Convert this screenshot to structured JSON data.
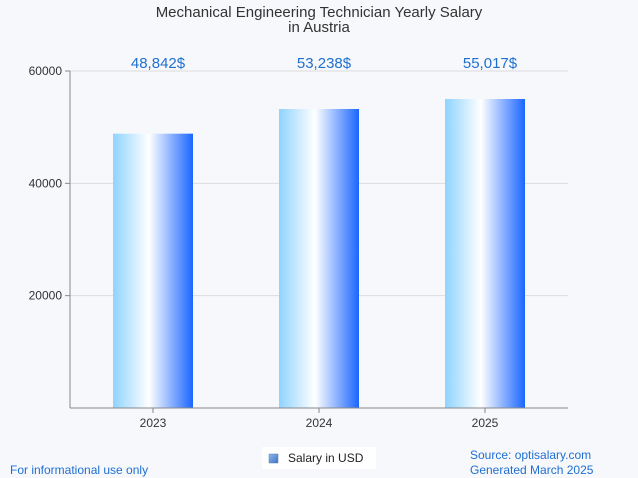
{
  "chart_data": {
    "type": "bar",
    "title": "Mechanical Engineering Technician Yearly Salary",
    "subtitle": "in Austria",
    "categories": [
      "2023",
      "2024",
      "2025"
    ],
    "values": [
      48842,
      53238,
      55017
    ],
    "value_labels": [
      "48,842$",
      "53,238$",
      "55,017$"
    ],
    "y_ticks": [
      "20000",
      "40000",
      "60000"
    ],
    "ylim": [
      0,
      60000
    ],
    "grid": true,
    "series": [
      {
        "name": "Salary in USD",
        "values": [
          48842,
          53238,
          55017
        ]
      }
    ],
    "legend_position": "bottom-center",
    "xlabel": "",
    "ylabel": ""
  },
  "footer": {
    "left": "For informational use only",
    "source": "Source: optisalary.com",
    "generated": "Generated March 2025"
  },
  "colors": {
    "bar_edge": "#1a66ff",
    "bar_light": "#8fd3ff",
    "bar_center": "#ffffff",
    "value_label": "#1f6fd1",
    "grid": "#dddddd",
    "axis": "#888888"
  }
}
